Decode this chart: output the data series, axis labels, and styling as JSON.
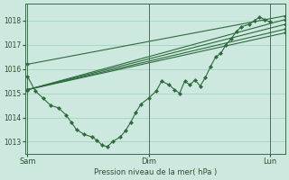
{
  "title": "Pression niveau de la mer( hPa )",
  "bg_color": "#cce8df",
  "grid_color": "#9ecfbf",
  "line_color": "#2d6b3c",
  "marker_color": "#2d6b3c",
  "ylim": [
    1012.5,
    1018.7
  ],
  "yticks": [
    1013,
    1014,
    1015,
    1016,
    1017,
    1018
  ],
  "xtick_labels": [
    "Sam",
    "Dim",
    "Lun"
  ],
  "xtick_positions": [
    0.0,
    0.47,
    0.94
  ],
  "vline_positions": [
    0.0,
    0.47,
    0.94
  ],
  "straight_lines": [
    {
      "x": [
        0.0,
        1.0
      ],
      "y": [
        1016.2,
        1018.2
      ]
    },
    {
      "x": [
        0.0,
        1.0
      ],
      "y": [
        1015.15,
        1018.05
      ]
    },
    {
      "x": [
        0.0,
        1.0
      ],
      "y": [
        1015.15,
        1017.85
      ]
    },
    {
      "x": [
        0.0,
        1.0
      ],
      "y": [
        1015.15,
        1017.65
      ]
    },
    {
      "x": [
        0.0,
        1.0
      ],
      "y": [
        1015.15,
        1017.5
      ]
    }
  ],
  "detail_x": [
    0.0,
    0.03,
    0.06,
    0.09,
    0.12,
    0.15,
    0.17,
    0.19,
    0.22,
    0.25,
    0.27,
    0.29,
    0.31,
    0.33,
    0.36,
    0.38,
    0.4,
    0.42,
    0.44,
    0.47,
    0.5,
    0.52,
    0.55,
    0.57,
    0.59,
    0.61,
    0.63,
    0.65,
    0.67,
    0.69,
    0.71,
    0.73,
    0.75,
    0.77,
    0.79,
    0.81,
    0.83,
    0.86,
    0.88,
    0.9,
    0.92,
    0.94
  ],
  "detail_y": [
    1015.7,
    1015.1,
    1014.8,
    1014.5,
    1014.4,
    1014.1,
    1013.8,
    1013.5,
    1013.3,
    1013.2,
    1013.05,
    1012.85,
    1012.8,
    1013.0,
    1013.2,
    1013.45,
    1013.8,
    1014.2,
    1014.55,
    1014.8,
    1015.1,
    1015.5,
    1015.35,
    1015.15,
    1015.0,
    1015.5,
    1015.35,
    1015.55,
    1015.3,
    1015.65,
    1016.1,
    1016.5,
    1016.65,
    1017.0,
    1017.25,
    1017.55,
    1017.75,
    1017.85,
    1018.0,
    1018.15,
    1018.05,
    1017.95
  ]
}
